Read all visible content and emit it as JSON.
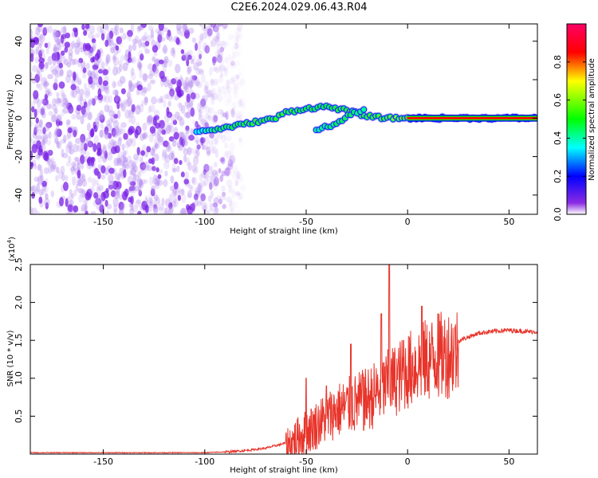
{
  "title": "C2E6.2024.029.06.43.R04",
  "chart_data": [
    {
      "type": "heatmap",
      "xlabel": "Height of straight line (km)",
      "ylabel": "Frequency (Hz)",
      "xlim": [
        -186,
        64
      ],
      "ylim": [
        -50,
        49
      ],
      "xticks": [
        -150,
        -100,
        -50,
        0,
        50
      ],
      "yticks": [
        -40,
        -20,
        0,
        20,
        40
      ],
      "xtick_labels": [
        "-150",
        "-100",
        "-50",
        "0",
        "50"
      ],
      "ytick_labels": [
        "-40",
        "-20",
        "0",
        "20",
        "40"
      ],
      "colorbar": {
        "label": "Normalized spectral amplitude",
        "range": [
          0,
          1
        ],
        "ticks": [
          0.0,
          0.2,
          0.4,
          0.6,
          0.8
        ],
        "tick_labels": [
          "0.0",
          "0.2",
          "0.4",
          "0.6",
          "0.8"
        ],
        "colormap": [
          "#ffffff",
          "#8a2be2",
          "#0000ff",
          "#00ffff",
          "#00ff00",
          "#ffff00",
          "#ff0000",
          "#ff0066"
        ]
      },
      "noise_region": {
        "x_range": [
          -186,
          -88
        ],
        "y_range": [
          -50,
          49
        ],
        "amplitude": 0.3
      },
      "signal_track": [
        {
          "x": -104,
          "y": -7,
          "amp": 0.35
        },
        {
          "x": -95,
          "y": -6,
          "amp": 0.45
        },
        {
          "x": -85,
          "y": -4,
          "amp": 0.5
        },
        {
          "x": -75,
          "y": -2,
          "amp": 0.55
        },
        {
          "x": -65,
          "y": 0,
          "amp": 0.55
        },
        {
          "x": -60,
          "y": 3,
          "amp": 0.55
        },
        {
          "x": -50,
          "y": 5,
          "amp": 0.5
        },
        {
          "x": -40,
          "y": 6,
          "amp": 0.5
        },
        {
          "x": -30,
          "y": 4,
          "amp": 0.55
        },
        {
          "x": -20,
          "y": 1,
          "amp": 0.55
        },
        {
          "x": -10,
          "y": 0,
          "amp": 0.6
        },
        {
          "x": 0,
          "y": 0,
          "amp": 0.8
        },
        {
          "x": 10,
          "y": 0,
          "amp": 0.85
        },
        {
          "x": 20,
          "y": 0,
          "amp": 0.9
        },
        {
          "x": 40,
          "y": 0,
          "amp": 0.95
        },
        {
          "x": 64,
          "y": 0,
          "amp": 0.95
        }
      ],
      "branch_track": [
        {
          "x": -45,
          "y": -6,
          "amp": 0.4
        },
        {
          "x": -35,
          "y": -3,
          "amp": 0.45
        },
        {
          "x": -28,
          "y": 2,
          "amp": 0.45
        },
        {
          "x": -20,
          "y": 5,
          "amp": 0.4
        }
      ],
      "grid": false
    },
    {
      "type": "line",
      "xlabel": "Height of straight line (km)",
      "ylabel": "SNR (10 * v/v)",
      "y_multiplier_label": "(x10",
      "y_multiplier_exp": "4",
      "y_multiplier_close": ")",
      "xlim": [
        -186,
        64
      ],
      "ylim": [
        0,
        2.5
      ],
      "xticks": [
        -150,
        -100,
        -50,
        0,
        50
      ],
      "yticks": [
        0.5,
        1.0,
        1.5,
        2.0,
        2.5
      ],
      "xtick_labels": [
        "-150",
        "-100",
        "-50",
        "0",
        "50"
      ],
      "ytick_labels": [
        "0.5",
        "1.0",
        "1.5",
        "2.0",
        "2.5"
      ],
      "color": "#e8342a",
      "series_envelope": {
        "x": [
          -186,
          -150,
          -100,
          -90,
          -80,
          -70,
          -60,
          -55,
          -50,
          -45,
          -40,
          -35,
          -30,
          -25,
          -20,
          -15,
          -10,
          -5,
          0,
          5,
          10,
          15,
          20,
          25,
          30,
          35,
          40,
          45,
          50,
          55,
          60,
          64
        ],
        "y": [
          0.02,
          0.02,
          0.02,
          0.03,
          0.05,
          0.08,
          0.15,
          0.25,
          0.35,
          0.45,
          0.55,
          0.65,
          0.7,
          0.75,
          0.8,
          0.9,
          1.0,
          1.1,
          1.2,
          1.3,
          1.35,
          1.4,
          1.45,
          1.5,
          1.55,
          1.6,
          1.62,
          1.63,
          1.64,
          1.63,
          1.62,
          1.62
        ]
      },
      "spikes": [
        {
          "x": -50,
          "y": 1.0
        },
        {
          "x": -40,
          "y": 0.9
        },
        {
          "x": -28,
          "y": 1.45
        },
        {
          "x": -22,
          "y": 1.05
        },
        {
          "x": -13,
          "y": 1.85
        },
        {
          "x": -9,
          "y": 2.5
        },
        {
          "x": -2,
          "y": 1.5
        },
        {
          "x": 7,
          "y": 1.95
        },
        {
          "x": 15,
          "y": 1.85
        }
      ],
      "grid": false
    }
  ]
}
